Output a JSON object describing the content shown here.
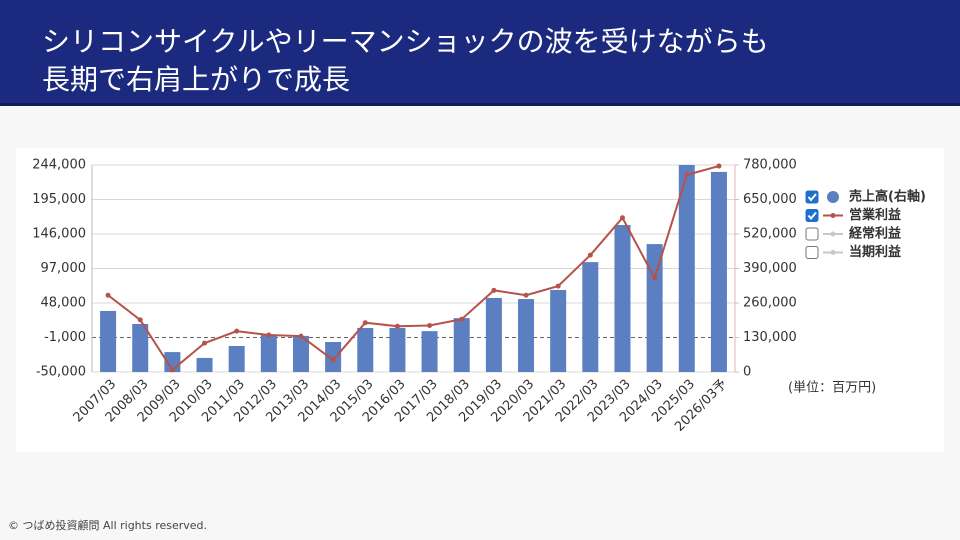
{
  "header": {
    "title_lines": [
      "シリコンサイクルやリーマンショックの波を受けながらも",
      "長期で右肩上がりで成長"
    ]
  },
  "footer": "© つばめ投資顧問 All rights reserved.",
  "chart_data": {
    "type": "combo",
    "unit_note": "(単位：百万円)",
    "categories": [
      "2007/03",
      "2008/03",
      "2009/03",
      "2010/03",
      "2011/03",
      "2012/03",
      "2013/03",
      "2014/03",
      "2015/03",
      "2016/03",
      "2017/03",
      "2018/03",
      "2019/03",
      "2020/03",
      "2021/03",
      "2022/03",
      "2023/03",
      "2024/03",
      "2025/03",
      "2026/03予"
    ],
    "ylim": [
      -50000,
      244000
    ],
    "yticks": [
      {
        "value": -50000,
        "label": "-50,000"
      },
      {
        "value": -1000,
        "label": "-1,000"
      },
      {
        "value": 48000,
        "label": "48,000"
      },
      {
        "value": 97000,
        "label": "97,000"
      },
      {
        "value": 146000,
        "label": "146,000"
      },
      {
        "value": 195000,
        "label": "195,000"
      },
      {
        "value": 244000,
        "label": "244,000"
      }
    ],
    "y2lim": [
      0,
      780000
    ],
    "y2ticks": [
      0,
      {
        "value": 130000,
        "label": "130,000"
      },
      {
        "value": 260000,
        "label": "260,000"
      },
      {
        "value": 390000,
        "label": "390,000"
      },
      {
        "value": 520000,
        "label": "520,000"
      },
      {
        "value": 650000,
        "label": "650,000"
      },
      {
        "value": 780000,
        "label": "780,000"
      }
    ],
    "grid": true,
    "reference_line": -1000,
    "legend": "right",
    "series": [
      {
        "name": "売上高(右軸)",
        "type": "bar",
        "axis": "y2",
        "color": "#5b7fc1",
        "visible": true,
        "values": [
          230000,
          181000,
          75000,
          53000,
          98000,
          139000,
          136000,
          113000,
          166000,
          166000,
          154000,
          203000,
          279000,
          275000,
          309000,
          414000,
          554000,
          482000,
          780000,
          754000
        ]
      },
      {
        "name": "営業利益",
        "type": "line",
        "axis": "y",
        "color": "#b5524a",
        "visible": true,
        "values": [
          59000,
          24000,
          -47000,
          -9000,
          8000,
          2500,
          1000,
          -33000,
          20000,
          15000,
          16000,
          25000,
          66000,
          59000,
          72000,
          116000,
          169000,
          83500,
          230000,
          242500
        ]
      },
      {
        "name": "経常利益",
        "type": "line",
        "axis": "y",
        "color": "#c8c8c8",
        "visible": false,
        "values": [
          null,
          null,
          null,
          null,
          null,
          null,
          null,
          null,
          null,
          null,
          null,
          null,
          null,
          null,
          null,
          null,
          null,
          null,
          null,
          null
        ]
      },
      {
        "name": "当期利益",
        "type": "line",
        "axis": "y",
        "color": "#c8c8c8",
        "visible": false,
        "values": [
          null,
          null,
          null,
          null,
          null,
          null,
          null,
          null,
          null,
          null,
          null,
          null,
          null,
          null,
          null,
          null,
          null,
          null,
          null,
          null
        ]
      }
    ]
  }
}
